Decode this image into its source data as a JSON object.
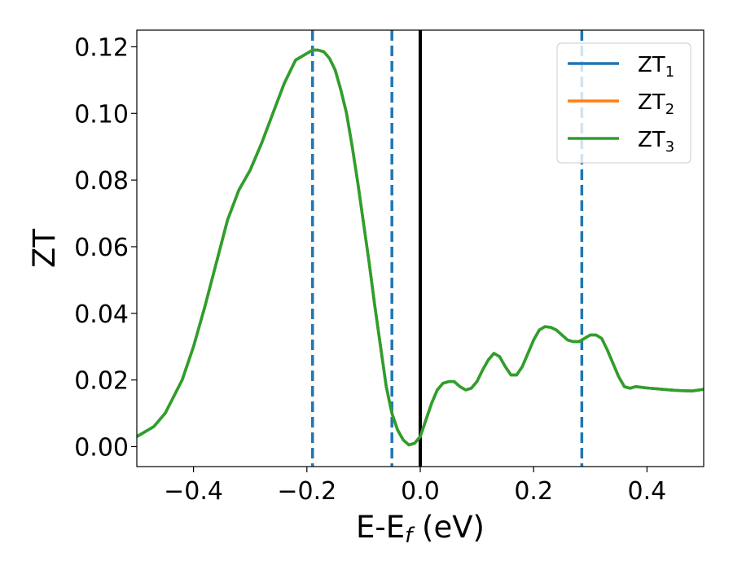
{
  "chart_data": {
    "type": "line",
    "xlabel": "E-E",
    "xlabel_sub": "f",
    "xlabel_unit": " (eV)",
    "ylabel": "ZT",
    "xlim": [
      -0.5,
      0.5
    ],
    "ylim": [
      -0.006,
      0.125
    ],
    "xticks": [
      -0.4,
      -0.2,
      0.0,
      0.2,
      0.4
    ],
    "xtick_labels": [
      "−0.4",
      "−0.2",
      "0.0",
      "0.2",
      "0.4"
    ],
    "yticks": [
      0.0,
      0.02,
      0.04,
      0.06,
      0.08,
      0.1,
      0.12
    ],
    "ytick_labels": [
      "0.00",
      "0.02",
      "0.04",
      "0.06",
      "0.08",
      "0.10",
      "0.12"
    ],
    "grid": false,
    "legend_position": "top-right",
    "x": [
      -0.5,
      -0.47,
      -0.45,
      -0.42,
      -0.4,
      -0.38,
      -0.36,
      -0.34,
      -0.32,
      -0.3,
      -0.28,
      -0.26,
      -0.24,
      -0.22,
      -0.2,
      -0.19,
      -0.18,
      -0.17,
      -0.16,
      -0.15,
      -0.14,
      -0.13,
      -0.12,
      -0.11,
      -0.1,
      -0.09,
      -0.08,
      -0.07,
      -0.06,
      -0.05,
      -0.04,
      -0.03,
      -0.02,
      -0.01,
      0.0,
      0.01,
      0.02,
      0.03,
      0.04,
      0.05,
      0.06,
      0.07,
      0.08,
      0.09,
      0.1,
      0.11,
      0.12,
      0.13,
      0.14,
      0.15,
      0.16,
      0.17,
      0.18,
      0.19,
      0.2,
      0.21,
      0.22,
      0.23,
      0.24,
      0.25,
      0.26,
      0.27,
      0.28,
      0.29,
      0.3,
      0.31,
      0.32,
      0.33,
      0.34,
      0.35,
      0.36,
      0.37,
      0.38,
      0.39,
      0.4,
      0.42,
      0.44,
      0.46,
      0.48,
      0.5
    ],
    "series": [
      {
        "name": "ZT",
        "name_sub": "1",
        "color": "#1f77b4",
        "y": [
          0.003,
          0.006,
          0.01,
          0.02,
          0.03,
          0.042,
          0.055,
          0.068,
          0.077,
          0.083,
          0.091,
          0.1,
          0.109,
          0.116,
          0.118,
          0.119,
          0.119,
          0.1185,
          0.1165,
          0.113,
          0.107,
          0.1,
          0.09,
          0.079,
          0.067,
          0.055,
          0.042,
          0.03,
          0.018,
          0.01,
          0.005,
          0.002,
          0.0005,
          0.001,
          0.003,
          0.008,
          0.013,
          0.017,
          0.019,
          0.0195,
          0.0195,
          0.018,
          0.017,
          0.0175,
          0.0195,
          0.023,
          0.026,
          0.028,
          0.027,
          0.024,
          0.0215,
          0.0215,
          0.024,
          0.028,
          0.032,
          0.035,
          0.036,
          0.0358,
          0.035,
          0.0335,
          0.032,
          0.0315,
          0.0315,
          0.0325,
          0.0335,
          0.0335,
          0.0325,
          0.029,
          0.025,
          0.021,
          0.018,
          0.0175,
          0.018,
          0.0178,
          0.0176,
          0.0173,
          0.017,
          0.0168,
          0.0167,
          0.0172
        ]
      },
      {
        "name": "ZT",
        "name_sub": "2",
        "color": "#ff7f0e",
        "y": [
          0.003,
          0.006,
          0.01,
          0.02,
          0.03,
          0.042,
          0.055,
          0.068,
          0.077,
          0.083,
          0.091,
          0.1,
          0.109,
          0.116,
          0.118,
          0.119,
          0.119,
          0.1185,
          0.1165,
          0.113,
          0.107,
          0.1,
          0.09,
          0.079,
          0.067,
          0.055,
          0.042,
          0.03,
          0.018,
          0.01,
          0.005,
          0.002,
          0.0005,
          0.001,
          0.003,
          0.008,
          0.013,
          0.017,
          0.019,
          0.0195,
          0.0195,
          0.018,
          0.017,
          0.0175,
          0.0195,
          0.023,
          0.026,
          0.028,
          0.027,
          0.024,
          0.0215,
          0.0215,
          0.024,
          0.028,
          0.032,
          0.035,
          0.036,
          0.0358,
          0.035,
          0.0335,
          0.032,
          0.0315,
          0.0315,
          0.0325,
          0.0335,
          0.0335,
          0.0325,
          0.029,
          0.025,
          0.021,
          0.018,
          0.0175,
          0.018,
          0.0178,
          0.0176,
          0.0173,
          0.017,
          0.0168,
          0.0167,
          0.0172
        ]
      },
      {
        "name": "ZT",
        "name_sub": "3",
        "color": "#2ca02c",
        "y": [
          0.003,
          0.006,
          0.01,
          0.02,
          0.03,
          0.042,
          0.055,
          0.068,
          0.077,
          0.083,
          0.091,
          0.1,
          0.109,
          0.116,
          0.118,
          0.119,
          0.119,
          0.1185,
          0.1165,
          0.113,
          0.107,
          0.1,
          0.09,
          0.079,
          0.067,
          0.055,
          0.042,
          0.03,
          0.018,
          0.01,
          0.005,
          0.002,
          0.0005,
          0.001,
          0.003,
          0.008,
          0.013,
          0.017,
          0.019,
          0.0195,
          0.0195,
          0.018,
          0.017,
          0.0175,
          0.0195,
          0.023,
          0.026,
          0.028,
          0.027,
          0.024,
          0.0215,
          0.0215,
          0.024,
          0.028,
          0.032,
          0.035,
          0.036,
          0.0358,
          0.035,
          0.0335,
          0.032,
          0.0315,
          0.0315,
          0.0325,
          0.0335,
          0.0335,
          0.0325,
          0.029,
          0.025,
          0.021,
          0.018,
          0.0175,
          0.018,
          0.0178,
          0.0176,
          0.0173,
          0.017,
          0.0168,
          0.0167,
          0.0172
        ]
      }
    ],
    "vlines": [
      {
        "x": -0.19,
        "style": "dashed",
        "color": "#1f77b4"
      },
      {
        "x": -0.05,
        "style": "dashed",
        "color": "#1f77b4"
      },
      {
        "x": 0.0,
        "style": "solid",
        "color": "#000000"
      },
      {
        "x": 0.285,
        "style": "dashed",
        "color": "#1f77b4"
      }
    ]
  }
}
